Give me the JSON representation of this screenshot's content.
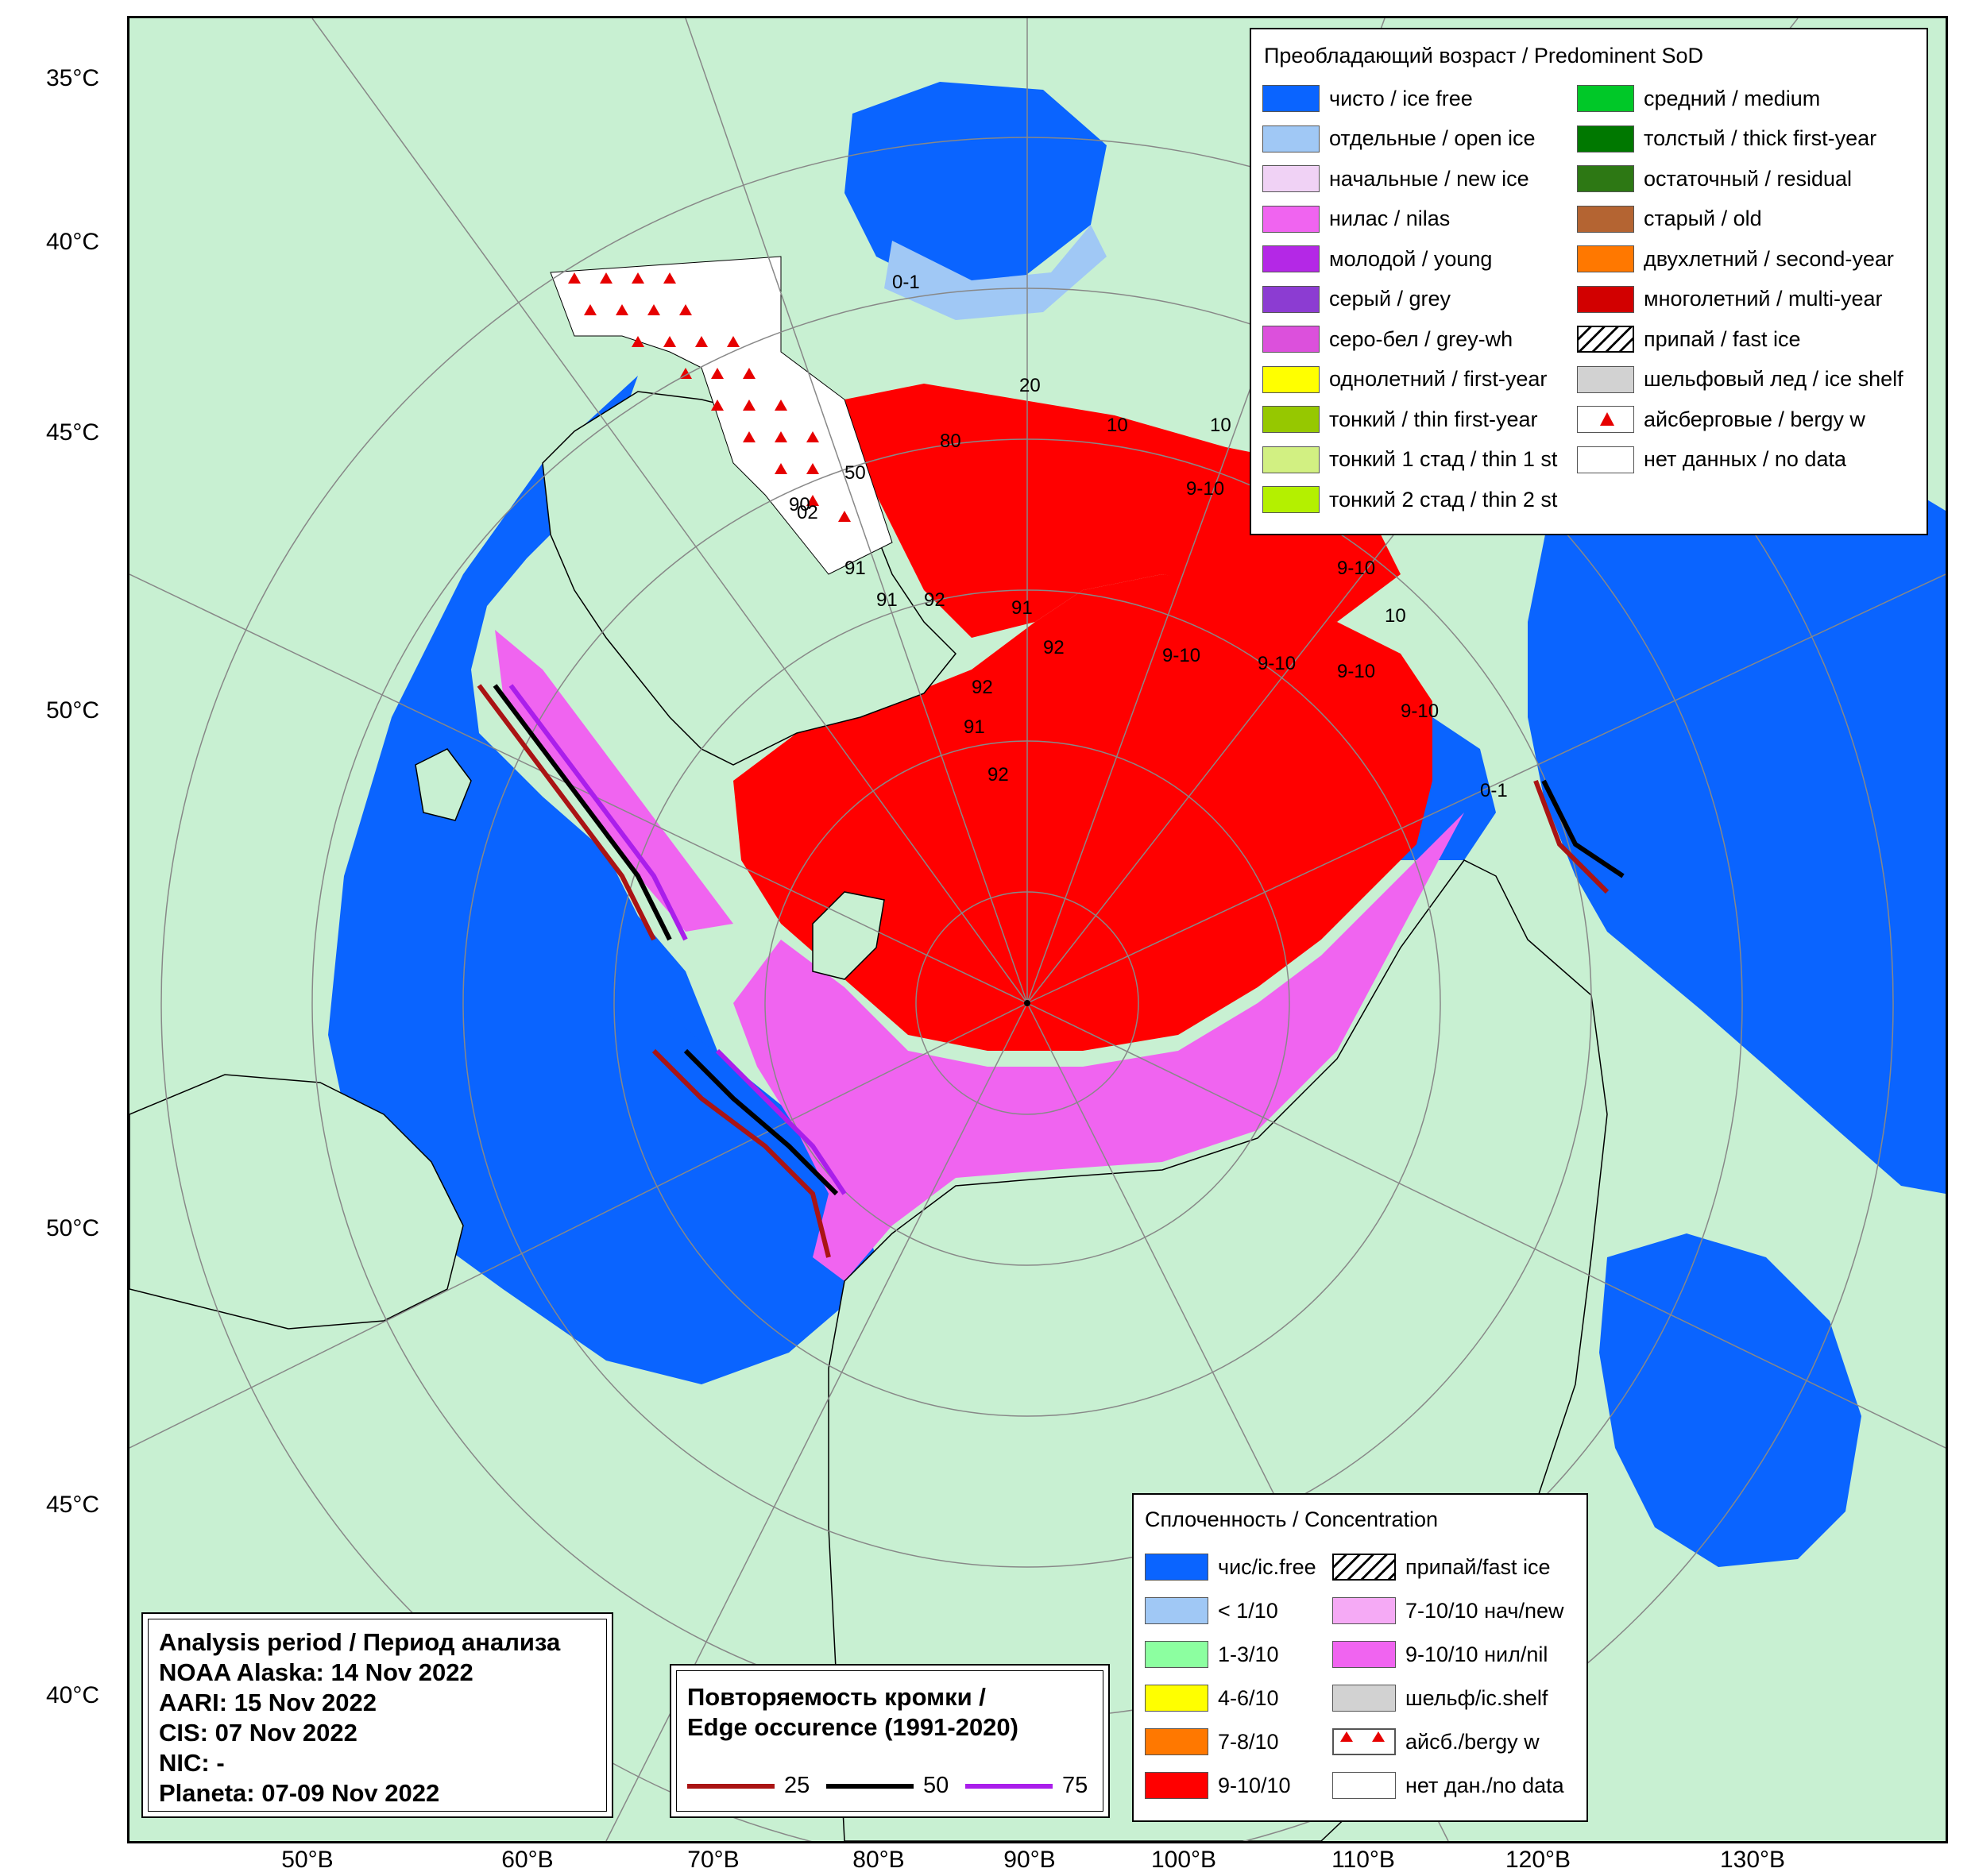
{
  "latitude_labels": {
    "left": [
      "35°C",
      "40°C",
      "45°C",
      "50°C",
      "50°C",
      "45°C",
      "40°C"
    ]
  },
  "longitude_labels": [
    "50°В",
    "60°В",
    "70°В",
    "80°В",
    "90°В",
    "100°В",
    "110°В",
    "120°В",
    "130°В"
  ],
  "colors": {
    "land": "#c8f0d2",
    "ice_free": "#0a64ff",
    "open_ice": "#a0c8f5",
    "new_ice": "#f0d2f5",
    "nilas": "#f064f0",
    "young": "#b428e6",
    "grey": "#8c3cd2",
    "grey_white": "#dc50dc",
    "first_year": "#ffff00",
    "thin_first_year": "#96c800",
    "thin_1st": "#d2f082",
    "thin_2nd": "#b4f000",
    "medium": "#00c828",
    "thick_first_year": "#007800",
    "residual": "#2d7814",
    "old": "#b46432",
    "second_year": "#ff7800",
    "multi_year": "#d20000",
    "ice_shelf": "#d2d2d2",
    "conc_1_3": "#8cffa0",
    "conc_4_6": "#ffff00",
    "conc_7_8": "#ff7800",
    "conc_9_10": "#ff0000",
    "edge_25": "#aa1414",
    "edge_50": "#000000",
    "edge_75": "#aa1eeb"
  },
  "sod_legend": {
    "title": "Преобладающий возраст / Predominent SoD",
    "items": [
      {
        "label": "чисто / ice free",
        "color": "#0a64ff"
      },
      {
        "label": "отдельные / open ice",
        "color": "#a0c8f5"
      },
      {
        "label": "начальные / new ice",
        "color": "#f0d2f5"
      },
      {
        "label": "нилас / nilas",
        "color": "#f064f0"
      },
      {
        "label": "молодой / young",
        "color": "#b428e6"
      },
      {
        "label": "серый / grey",
        "color": "#8c3cd2"
      },
      {
        "label": "серо-бел / grey-wh",
        "color": "#dc50dc"
      },
      {
        "label": "однолетний / first-year",
        "color": "#ffff00"
      },
      {
        "label": "тонкий / thin first-year",
        "color": "#96c800"
      },
      {
        "label": "тонкий 1 стад / thin 1 st",
        "color": "#d2f082"
      },
      {
        "label": "тонкий 2 стад / thin 2 st",
        "color": "#b4f000"
      },
      {
        "label": "средний / medium",
        "color": "#00c828"
      },
      {
        "label": "толстый / thick first-year",
        "color": "#007800"
      },
      {
        "label": "остаточный / residual",
        "color": "#2d7814"
      },
      {
        "label": "старый / old",
        "color": "#b46432"
      },
      {
        "label": "двухлетний / second-year",
        "color": "#ff7800"
      },
      {
        "label": "многолетний / multi-year",
        "color": "#d20000"
      },
      {
        "label": "припай / fast ice",
        "color": "hatch"
      },
      {
        "label": "шельфовый лед / ice shelf",
        "color": "#d2d2d2"
      },
      {
        "label": "айсберговые / bergy w",
        "color": "bergy"
      },
      {
        "label": "нет данных / no data",
        "color": "#ffffff"
      }
    ]
  },
  "conc_legend": {
    "title": "Сплоченность / Concentration",
    "items": [
      {
        "label": "чис/ic.free",
        "color": "#0a64ff"
      },
      {
        "label": "< 1/10",
        "color": "#a0c8f5"
      },
      {
        "label": "1-3/10",
        "color": "#8cffa0"
      },
      {
        "label": "4-6/10",
        "color": "#ffff00"
      },
      {
        "label": "7-8/10",
        "color": "#ff7800"
      },
      {
        "label": "9-10/10",
        "color": "#ff0000"
      },
      {
        "label": "припай/fast ice",
        "color": "hatch"
      },
      {
        "label": "7-10/10 нач/new",
        "color": "#f5aaf5"
      },
      {
        "label": "9-10/10 нил/nil",
        "color": "#f064f0"
      },
      {
        "label": "шельф/ic.shelf",
        "color": "#d2d2d2"
      },
      {
        "label": "айсб./bergy w",
        "color": "bergy2"
      },
      {
        "label": "нет дан./no data",
        "color": "#ffffff"
      }
    ]
  },
  "analysis": {
    "title": "Analysis period / Период анализа",
    "lines": [
      "NOAA Alaska: 14 Nov 2022",
      "AARI: 15 Nov 2022",
      "CIS: 07 Nov 2022",
      "NIC: -",
      "Planeta: 07-09 Nov 2022"
    ]
  },
  "edge": {
    "title_line1": "Повторяемость кромки /",
    "title_line2": "Edge occurence (1991-2020)",
    "items": [
      {
        "label": "25",
        "color": "#aa1414"
      },
      {
        "label": "50",
        "color": "#000000"
      },
      {
        "label": "75",
        "color": "#aa1eeb"
      }
    ]
  },
  "map_labels": [
    "0-1",
    "20",
    "90",
    "91",
    "92",
    "10",
    "9-10",
    "10",
    "9-10",
    "91",
    "92",
    "9-10",
    "9-10",
    "9-10",
    "9-10",
    "10",
    "91",
    "92",
    "0-1",
    "02",
    "50",
    "80",
    "10",
    "91",
    "92"
  ]
}
